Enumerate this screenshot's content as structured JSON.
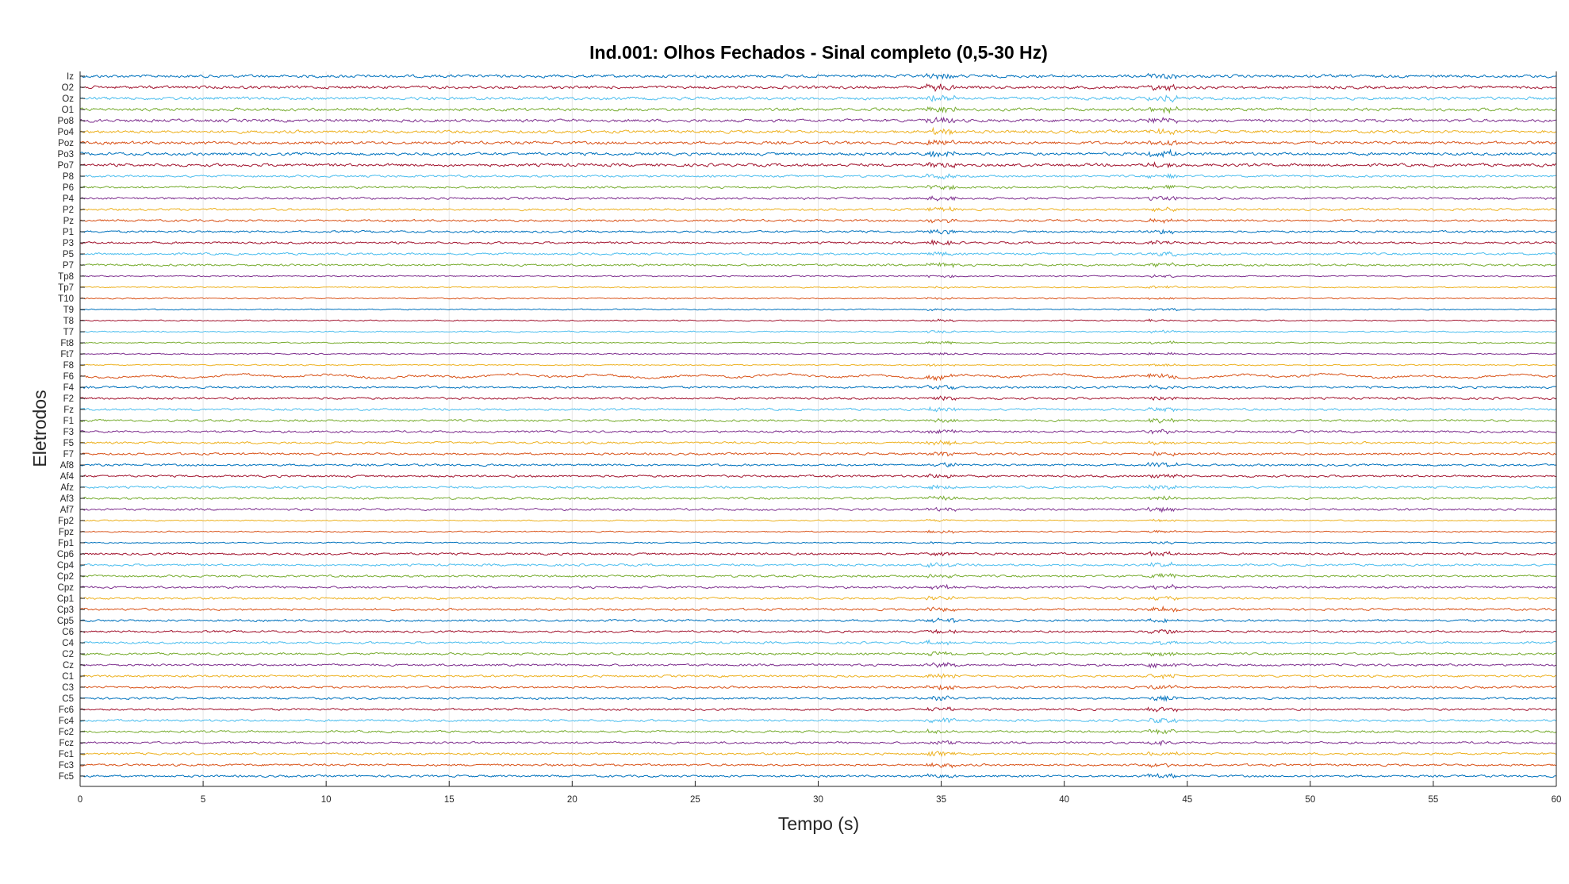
{
  "chart_data": {
    "type": "line",
    "title": "Ind.001: Olhos Fechados - Sinal completo (0,5-30 Hz)",
    "xlabel": "Tempo (s)",
    "ylabel": "Eletrodos",
    "xlim": [
      0,
      60
    ],
    "xticks": [
      "0",
      "5",
      "10",
      "15",
      "20",
      "25",
      "30",
      "35",
      "40",
      "45",
      "50",
      "55",
      "60"
    ],
    "grid": true,
    "electrodes": [
      "Iz",
      "O2",
      "Oz",
      "O1",
      "Po8",
      "Po4",
      "Poz",
      "Po3",
      "Po7",
      "P8",
      "P6",
      "P4",
      "P2",
      "Pz",
      "P1",
      "P3",
      "P5",
      "P7",
      "Tp8",
      "Tp7",
      "T10",
      "T9",
      "T8",
      "T7",
      "Ft8",
      "Ft7",
      "F8",
      "F6",
      "F4",
      "F2",
      "Fz",
      "F1",
      "F3",
      "F5",
      "F7",
      "Af8",
      "Af4",
      "Afz",
      "Af3",
      "Af7",
      "Fp2",
      "Fpz",
      "Fp1",
      "Cp6",
      "Cp4",
      "Cp2",
      "Cpz",
      "Cp1",
      "Cp3",
      "Cp5",
      "C6",
      "C4",
      "C2",
      "Cz",
      "C1",
      "C3",
      "C5",
      "Fc6",
      "Fc4",
      "Fc2",
      "Fcz",
      "Fc1",
      "Fc3",
      "Fc5"
    ],
    "series_colors": [
      "#0072BD",
      "#A2142F",
      "#4DBEEE",
      "#77AC30",
      "#7E2F8E",
      "#EDB120",
      "#D95319"
    ],
    "traces": {
      "noise_level": [
        "high",
        "high",
        "high",
        "high",
        "high",
        "high",
        "high",
        "high",
        "high",
        "medium",
        "medium",
        "medium",
        "medium",
        "medium",
        "medium",
        "medium",
        "medium",
        "medium",
        "low",
        "low",
        "low",
        "low",
        "low",
        "low",
        "low",
        "low",
        "low",
        "medium",
        "medium",
        "medium",
        "medium",
        "medium",
        "medium",
        "medium",
        "medium",
        "medium",
        "medium",
        "medium",
        "medium",
        "medium",
        "low",
        "low",
        "low",
        "medium",
        "medium",
        "medium",
        "medium",
        "medium",
        "medium",
        "medium",
        "medium",
        "medium",
        "medium",
        "medium",
        "medium",
        "medium",
        "medium",
        "medium",
        "medium",
        "medium",
        "medium",
        "medium",
        "medium",
        "medium"
      ],
      "transients_s": [
        35,
        44
      ]
    }
  }
}
